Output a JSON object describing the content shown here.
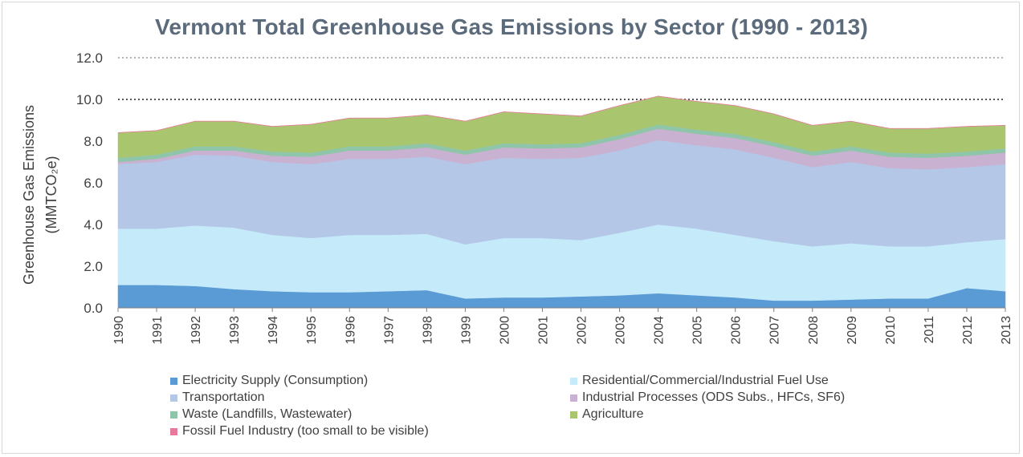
{
  "chart_data": {
    "type": "area",
    "title": "Vermont Total Greenhouse Gas Emissions by Sector (1990 - 2013)",
    "ylabel_line1": "Greenhouse Gas Emissions",
    "ylabel_line2": "(MMTCO₂e)",
    "ylim": [
      0,
      12
    ],
    "yticks": [
      "0.0",
      "2.0",
      "4.0",
      "6.0",
      "8.0",
      "10.0",
      "12.0"
    ],
    "grid": true,
    "stacked": true,
    "legend_position": "bottom",
    "x": [
      "1990",
      "1991",
      "1992",
      "1993",
      "1994",
      "1995",
      "1996",
      "1997",
      "1998",
      "1999",
      "2000",
      "2001",
      "2002",
      "2003",
      "2004",
      "2005",
      "2006",
      "2007",
      "2008",
      "2009",
      "2010",
      "2011",
      "2012",
      "2013"
    ],
    "series": [
      {
        "name": "Electricity Supply (Consumption)",
        "color": "#5b9bd5",
        "values": [
          1.1,
          1.1,
          1.05,
          0.9,
          0.8,
          0.75,
          0.75,
          0.8,
          0.85,
          0.45,
          0.5,
          0.5,
          0.55,
          0.6,
          0.7,
          0.6,
          0.5,
          0.35,
          0.35,
          0.4,
          0.45,
          0.45,
          0.95,
          0.8
        ]
      },
      {
        "name": "Residential/Commercial/Industrial Fuel Use",
        "color": "#c5ebfa",
        "values": [
          2.7,
          2.7,
          2.9,
          2.95,
          2.7,
          2.6,
          2.75,
          2.7,
          2.7,
          2.6,
          2.85,
          2.85,
          2.7,
          3.0,
          3.3,
          3.2,
          3.0,
          2.85,
          2.6,
          2.7,
          2.5,
          2.5,
          2.2,
          2.5
        ]
      },
      {
        "name": "Transportation",
        "color": "#b4c7e7",
        "values": [
          3.1,
          3.2,
          3.4,
          3.45,
          3.5,
          3.55,
          3.65,
          3.65,
          3.7,
          3.85,
          3.85,
          3.8,
          3.95,
          3.95,
          4.05,
          4.0,
          4.1,
          4.0,
          3.8,
          3.9,
          3.75,
          3.7,
          3.6,
          3.6
        ]
      },
      {
        "name": "Industrial Processes (ODS Subs., HFCs, SF6)",
        "color": "#c9b1d1",
        "values": [
          0.1,
          0.15,
          0.2,
          0.25,
          0.3,
          0.35,
          0.4,
          0.4,
          0.45,
          0.45,
          0.5,
          0.5,
          0.5,
          0.55,
          0.55,
          0.55,
          0.55,
          0.55,
          0.55,
          0.55,
          0.55,
          0.55,
          0.55,
          0.55
        ]
      },
      {
        "name": "Waste (Landfills, Wastewater)",
        "color": "#8fc5a8",
        "values": [
          0.2,
          0.2,
          0.2,
          0.2,
          0.2,
          0.2,
          0.2,
          0.2,
          0.2,
          0.2,
          0.2,
          0.2,
          0.2,
          0.2,
          0.2,
          0.2,
          0.2,
          0.2,
          0.2,
          0.2,
          0.2,
          0.2,
          0.2,
          0.2
        ]
      },
      {
        "name": "Agriculture",
        "color": "#a9c66e",
        "values": [
          1.2,
          1.15,
          1.2,
          1.2,
          1.2,
          1.35,
          1.35,
          1.35,
          1.35,
          1.4,
          1.5,
          1.45,
          1.3,
          1.4,
          1.35,
          1.35,
          1.35,
          1.35,
          1.25,
          1.2,
          1.15,
          1.2,
          1.2,
          1.1
        ]
      },
      {
        "name": "Fossil Fuel Industry (too small to be visible)",
        "color": "#e8799b",
        "values": [
          0.01,
          0.01,
          0.01,
          0.01,
          0.01,
          0.01,
          0.01,
          0.01,
          0.01,
          0.01,
          0.01,
          0.01,
          0.01,
          0.01,
          0.01,
          0.01,
          0.01,
          0.01,
          0.01,
          0.01,
          0.01,
          0.01,
          0.01,
          0.01
        ]
      }
    ]
  }
}
